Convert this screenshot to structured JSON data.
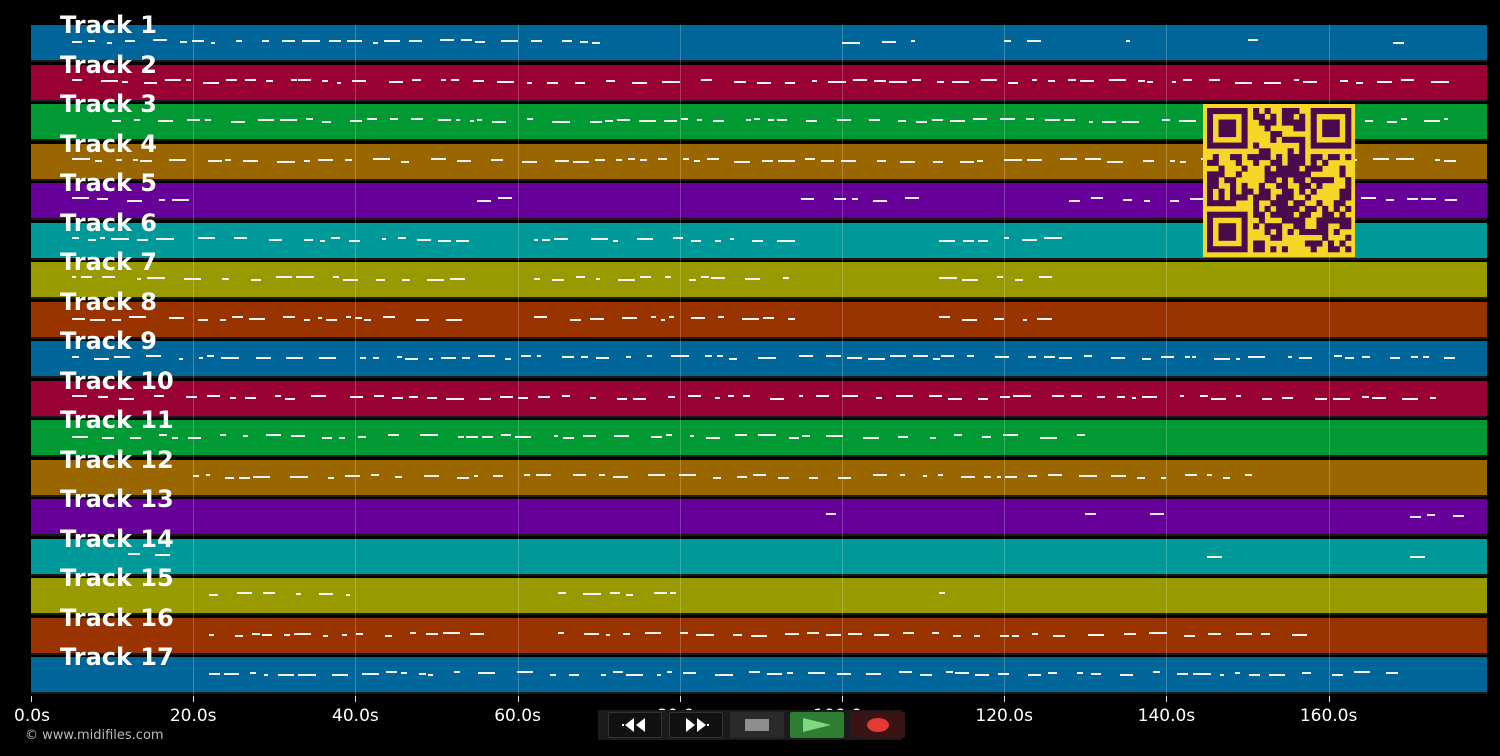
{
  "tracks": [
    {
      "label": "Track 1",
      "color": "#006699"
    },
    {
      "label": "Track 2",
      "color": "#990033"
    },
    {
      "label": "Track 3",
      "color": "#009933"
    },
    {
      "label": "Track 4",
      "color": "#996600"
    },
    {
      "label": "Track 5",
      "color": "#660099"
    },
    {
      "label": "Track 6",
      "color": "#009999"
    },
    {
      "label": "Track 7",
      "color": "#999900"
    },
    {
      "label": "Track 8",
      "color": "#993300"
    },
    {
      "label": "Track 9",
      "color": "#006699"
    },
    {
      "label": "Track 10",
      "color": "#990033"
    },
    {
      "label": "Track 11",
      "color": "#009933"
    },
    {
      "label": "Track 12",
      "color": "#996600"
    },
    {
      "label": "Track 13",
      "color": "#660099"
    },
    {
      "label": "Track 14",
      "color": "#009999"
    },
    {
      "label": "Track 15",
      "color": "#999900"
    },
    {
      "label": "Track 16",
      "color": "#993300"
    },
    {
      "label": "Track 17",
      "color": "#006699"
    }
  ],
  "timeline": {
    "ticks": [
      "0.0s",
      "20.0s",
      "40.0s",
      "60.0s",
      "80.0s",
      "100.0s",
      "120.0s",
      "140.0s",
      "160.0s"
    ]
  },
  "transport": {
    "rewind_icon": "rewind-icon",
    "fast_forward_icon": "fast-forward-icon",
    "stop_icon": "stop-icon",
    "play_icon": "play-icon",
    "record_icon": "record-icon",
    "play_color": "#2e7d32",
    "record_color": "#e53935"
  },
  "footer": {
    "copyright": "© www.midifiles.com"
  },
  "qr_colors": {
    "background": "#f7d628",
    "modules": "#4a0a4e"
  }
}
